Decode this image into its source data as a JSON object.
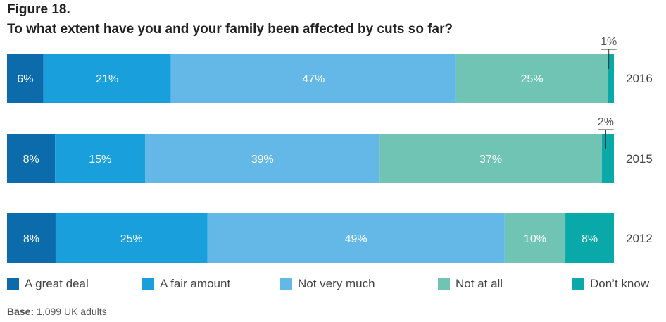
{
  "figure_label": "Figure 18.",
  "base": {
    "prefix": "Base:",
    "text": "1,099 UK adults"
  },
  "chart_data": {
    "type": "bar",
    "orientation": "horizontal",
    "stacked": true,
    "title": "To what extent have you and your family been affected by cuts so far?",
    "xlim": [
      0,
      100
    ],
    "categories": [
      "2016",
      "2015",
      "2012"
    ],
    "series": [
      {
        "name": "A great deal",
        "color": "#0b6bab",
        "values": [
          6,
          8,
          8
        ]
      },
      {
        "name": "A fair amount",
        "color": "#189fdc",
        "values": [
          21,
          15,
          25
        ]
      },
      {
        "name": "Not very much",
        "color": "#63b8e8",
        "values": [
          47,
          39,
          49
        ]
      },
      {
        "name": "Not at all",
        "color": "#70c4b4",
        "values": [
          25,
          37,
          10
        ]
      },
      {
        "name": "Don’t know",
        "color": "#0aa9a9",
        "values": [
          1,
          2,
          8
        ]
      }
    ],
    "labels": [
      [
        "6%",
        "21%",
        "47%",
        "25%",
        "1%"
      ],
      [
        "8%",
        "15%",
        "39%",
        "37%",
        "2%"
      ],
      [
        "8%",
        "25%",
        "49%",
        "10%",
        "8%"
      ]
    ],
    "legend_position": "bottom"
  }
}
